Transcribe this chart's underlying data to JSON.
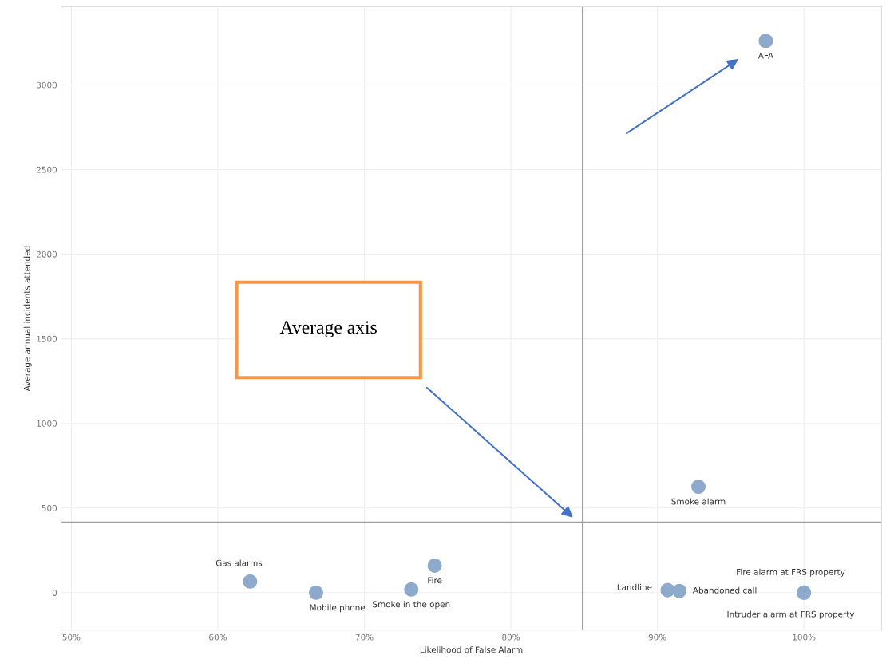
{
  "chart_data": {
    "type": "scatter",
    "xlabel": "Likelihood of False Alarm",
    "ylabel": "Average annual incidents attended",
    "xlim": [
      49.3,
      105.3
    ],
    "ylim": [
      -221,
      3462
    ],
    "xticks": [
      {
        "value": 50,
        "label": "50%"
      },
      {
        "value": 60,
        "label": "60%"
      },
      {
        "value": 70,
        "label": "70%"
      },
      {
        "value": 80,
        "label": "80%"
      },
      {
        "value": 90,
        "label": "90%"
      },
      {
        "value": 100,
        "label": "100%"
      }
    ],
    "yticks": [
      0,
      500,
      1000,
      1500,
      2000,
      2500,
      3000
    ],
    "grid": true,
    "legend": false,
    "marker": "circle",
    "ref_lines": [
      {
        "axis": "x",
        "value": 84.9,
        "color": "#a0a0a0"
      },
      {
        "axis": "y",
        "value": 415,
        "color": "#a0a0a0"
      }
    ],
    "annotations": [
      "Average axis"
    ],
    "series": [
      {
        "name": "AFA",
        "color": "#8da9cb",
        "x": [
          97.4
        ],
        "values": [
          3260
        ]
      },
      {
        "name": "Smoke alarm",
        "color": "#8da9cb",
        "x": [
          92.8
        ],
        "values": [
          626
        ]
      },
      {
        "name": "Gas alarms",
        "color": "#8da9cb",
        "x": [
          62.2
        ],
        "values": [
          66
        ]
      },
      {
        "name": "Mobile phone",
        "color": "#8da9cb",
        "x": [
          66.7
        ],
        "values": [
          0
        ]
      },
      {
        "name": "Fire",
        "color": "#8da9cb",
        "x": [
          74.8
        ],
        "values": [
          160
        ]
      },
      {
        "name": "Smoke in the open",
        "color": "#8da9cb",
        "x": [
          73.2
        ],
        "values": [
          19
        ]
      },
      {
        "name": "Landline",
        "color": "#8da9cb",
        "x": [
          90.7
        ],
        "values": [
          15
        ]
      },
      {
        "name": "Abandoned call",
        "color": "#8da9cb",
        "x": [
          91.5
        ],
        "values": [
          10
        ]
      },
      {
        "name": "Fire alarm at FRS property",
        "color": "#8da9cb",
        "x": [
          100
        ],
        "values": [
          0
        ]
      },
      {
        "name": "Intruder alarm at FRS property",
        "color": "#8da9cb",
        "x": [
          100
        ],
        "values": [
          0
        ]
      }
    ]
  }
}
